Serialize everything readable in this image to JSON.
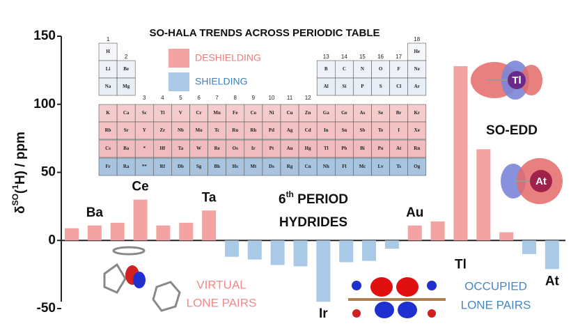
{
  "chart_data": {
    "type": "bar",
    "title": "SO-HALA TRENDS ACROSS PERIODIC TABLE",
    "y_label": {
      "base": "δ",
      "sup": "SO",
      "open": "(",
      "sup2": "1",
      "rest": "H) / ppm"
    },
    "categories": [
      null,
      "Ba",
      null,
      "Ce",
      null,
      null,
      "Ta",
      null,
      null,
      null,
      null,
      "Ir",
      null,
      null,
      null,
      "Au",
      null,
      "Tl",
      null,
      null,
      null,
      "At"
    ],
    "values": [
      9,
      11,
      13,
      30,
      11,
      13,
      22,
      -12,
      -14,
      -18,
      -19,
      -45,
      -16,
      -15,
      -6,
      11,
      14,
      128,
      67,
      6,
      -10,
      -21
    ],
    "legend": [
      {
        "name": "DESHIELDING",
        "color": "#f4a3a3"
      },
      {
        "name": "SHIELDING",
        "color": "#a9c9e6"
      }
    ],
    "ylim": [
      -50,
      150
    ],
    "yticks": [
      -50,
      0,
      50,
      100,
      150
    ],
    "annotations": {
      "period": {
        "num": "6",
        "sup": "th",
        "rest": " PERIOD",
        "line2": "HYDRIDES"
      },
      "edd": "SO-EDD",
      "virtual": [
        "VIRTUAL",
        "LONE PAIRS"
      ],
      "occupied": [
        "OCCUPIED",
        "LONE PAIRS"
      ],
      "orbital_labels": [
        "Tl",
        "At"
      ]
    },
    "periodic_table": {
      "groups": [
        1,
        2,
        3,
        4,
        5,
        6,
        7,
        8,
        9,
        10,
        11,
        12,
        13,
        14,
        15,
        16,
        17,
        18
      ],
      "periods": [
        [
          "H",
          null,
          null,
          null,
          null,
          null,
          null,
          null,
          null,
          null,
          null,
          null,
          null,
          null,
          null,
          null,
          null,
          "He"
        ],
        [
          "Li",
          "Be",
          null,
          null,
          null,
          null,
          null,
          null,
          null,
          null,
          null,
          null,
          "B",
          "C",
          "N",
          "O",
          "F",
          "Ne"
        ],
        [
          "Na",
          "Mg",
          null,
          null,
          null,
          null,
          null,
          null,
          null,
          null,
          null,
          null,
          "Al",
          "Si",
          "P",
          "S",
          "Cl",
          "Ar"
        ],
        [
          "K",
          "Ca",
          "Sc",
          "Ti",
          "V",
          "Cr",
          "Mn",
          "Fe",
          "Co",
          "Ni",
          "Cu",
          "Zn",
          "Ga",
          "Ge",
          "As",
          "Se",
          "Br",
          "Kr"
        ],
        [
          "Rb",
          "Sr",
          "Y",
          "Zr",
          "Nb",
          "Mo",
          "Tc",
          "Ru",
          "Rh",
          "Pd",
          "Ag",
          "Cd",
          "In",
          "Sn",
          "Sb",
          "Te",
          "I",
          "Xe"
        ],
        [
          "Cs",
          "Ba",
          "*",
          "Hf",
          "Ta",
          "W",
          "Re",
          "Os",
          "Ir",
          "Pt",
          "Au",
          "Hg",
          "Tl",
          "Pb",
          "Bi",
          "Po",
          "At",
          "Rn"
        ],
        [
          "Fr",
          "Ra",
          "**",
          "Rf",
          "Db",
          "Sg",
          "Bh",
          "Hs",
          "Mt",
          "Ds",
          "Rg",
          "Cn",
          "Nh",
          "Fl",
          "Mc",
          "Lv",
          "Ts",
          "Og"
        ]
      ]
    }
  }
}
